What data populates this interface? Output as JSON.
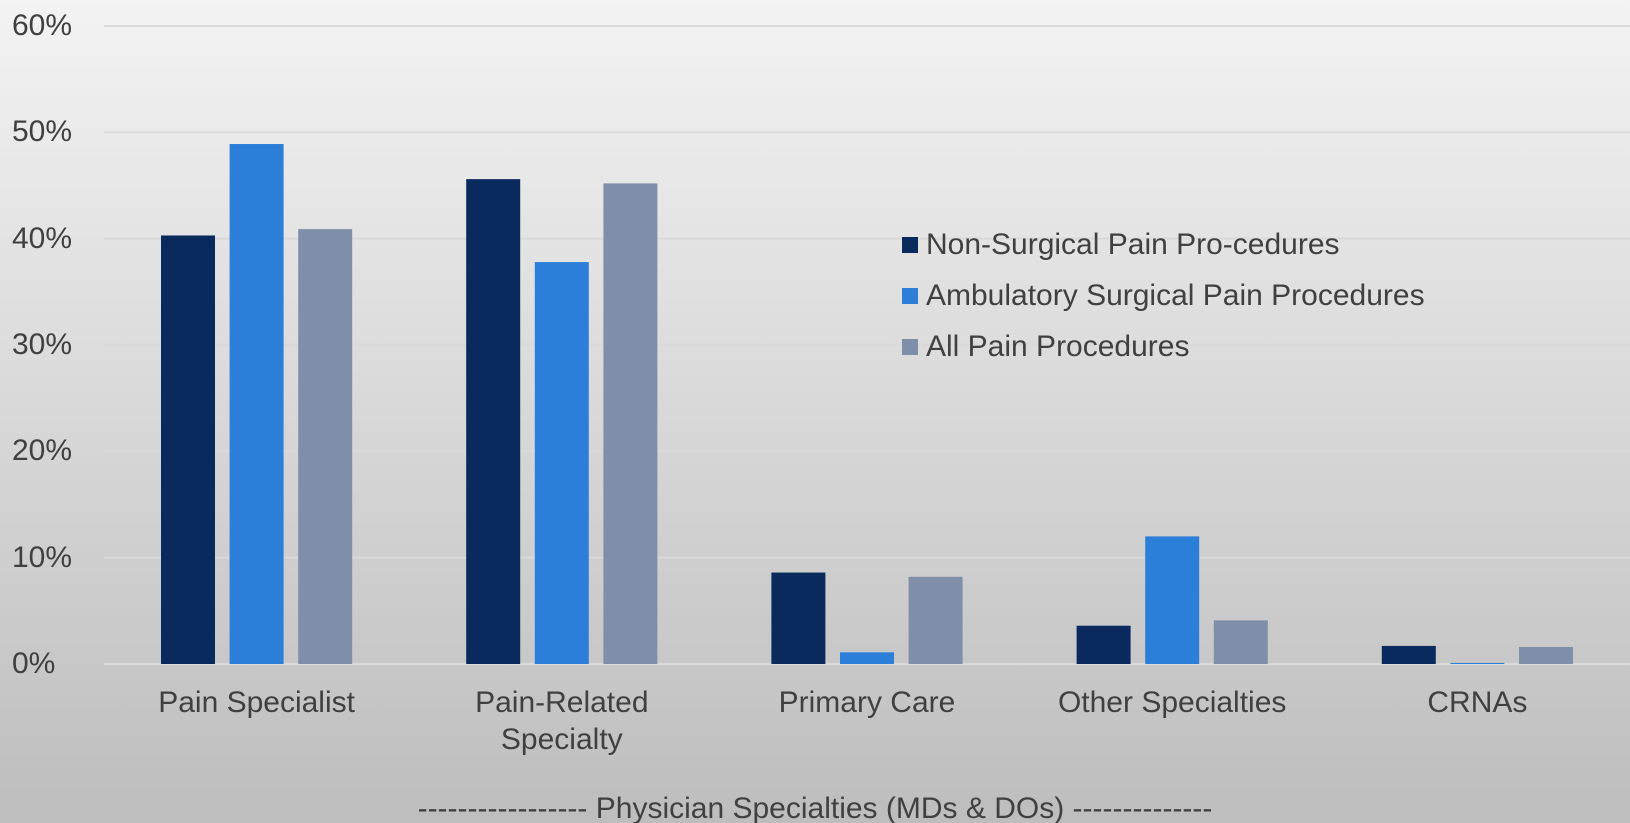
{
  "chart_data": {
    "type": "bar",
    "categories": [
      "Pain Specialist",
      "Pain-Related Specialty",
      "Primary Care",
      "Other Specialties",
      "CRNAs"
    ],
    "series": [
      {
        "name": "Non-Surgical Pain Pro-cedures",
        "color": "#0a2a5e",
        "values": [
          40.3,
          45.6,
          8.6,
          3.6,
          1.7
        ]
      },
      {
        "name": "Ambulatory Surgical Pain Procedures",
        "color": "#2b7fd9",
        "values": [
          48.9,
          37.8,
          1.1,
          12.0,
          0.1
        ]
      },
      {
        "name": "All Pain Procedures",
        "color": "#7f8fa9",
        "values": [
          40.9,
          45.2,
          8.2,
          4.1,
          1.6
        ]
      }
    ],
    "xlabel": "----------------- Physician Specialties (MDs & DOs) --------------",
    "ylim": [
      0,
      60
    ],
    "yticks": [
      {
        "value": 0,
        "label": "0%"
      },
      {
        "value": 10,
        "label": "10%"
      },
      {
        "value": 20,
        "label": "20%"
      },
      {
        "value": 30,
        "label": "30%"
      },
      {
        "value": 40,
        "label": "40%"
      },
      {
        "value": 50,
        "label": "50%"
      },
      {
        "value": 60,
        "label": "60%"
      }
    ],
    "grid": true,
    "legend": "right"
  }
}
